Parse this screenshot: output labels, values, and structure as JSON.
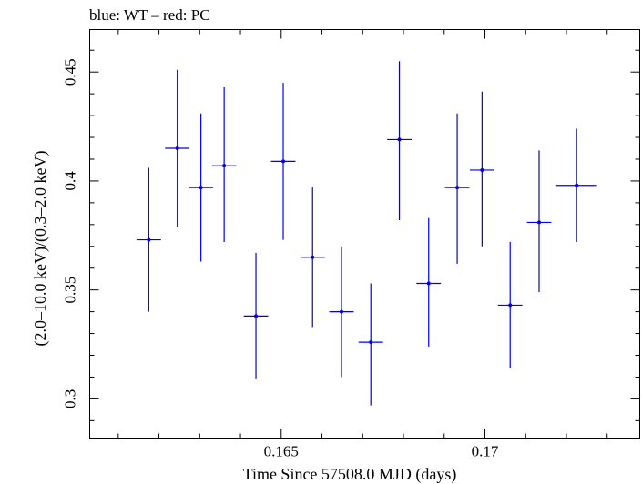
{
  "header": {
    "title": "blue: WT – red: PC"
  },
  "chart_data": {
    "type": "scatter",
    "title": "blue: WT – red: PC",
    "xlabel": "Time Since 57508.0 MJD (days)",
    "ylabel": "(2.0–10.0 keV)/(0.3–2.0 keV)",
    "xlim": [
      0.1603,
      0.1738
    ],
    "ylim": [
      0.282,
      0.4695
    ],
    "xticks": [
      0.165,
      0.17
    ],
    "xtick_labels": [
      "0.165",
      "0.17"
    ],
    "yticks": [
      0.3,
      0.35,
      0.4,
      0.45
    ],
    "ytick_labels": [
      "0.3",
      "0.35",
      "0.4",
      "0.45"
    ],
    "grid": false,
    "series": [
      {
        "name": "WT",
        "color": "#0000ee",
        "points": [
          {
            "x": 0.16175,
            "xerr": 0.0003,
            "y": 0.373,
            "ylo": 0.34,
            "yhi": 0.406
          },
          {
            "x": 0.16245,
            "xerr": 0.0003,
            "y": 0.415,
            "ylo": 0.379,
            "yhi": 0.451
          },
          {
            "x": 0.16303,
            "xerr": 0.0003,
            "y": 0.397,
            "ylo": 0.363,
            "yhi": 0.431
          },
          {
            "x": 0.1636,
            "xerr": 0.0003,
            "y": 0.407,
            "ylo": 0.372,
            "yhi": 0.443
          },
          {
            "x": 0.16438,
            "xerr": 0.0003,
            "y": 0.338,
            "ylo": 0.309,
            "yhi": 0.367
          },
          {
            "x": 0.16505,
            "xerr": 0.0003,
            "y": 0.409,
            "ylo": 0.373,
            "yhi": 0.445
          },
          {
            "x": 0.16577,
            "xerr": 0.0003,
            "y": 0.365,
            "ylo": 0.333,
            "yhi": 0.397
          },
          {
            "x": 0.16648,
            "xerr": 0.0003,
            "y": 0.34,
            "ylo": 0.31,
            "yhi": 0.37
          },
          {
            "x": 0.1672,
            "xerr": 0.0003,
            "y": 0.326,
            "ylo": 0.297,
            "yhi": 0.353
          },
          {
            "x": 0.1679,
            "xerr": 0.0003,
            "y": 0.419,
            "ylo": 0.382,
            "yhi": 0.455
          },
          {
            "x": 0.16862,
            "xerr": 0.0003,
            "y": 0.353,
            "ylo": 0.324,
            "yhi": 0.383
          },
          {
            "x": 0.16932,
            "xerr": 0.0003,
            "y": 0.397,
            "ylo": 0.362,
            "yhi": 0.431
          },
          {
            "x": 0.16993,
            "xerr": 0.0003,
            "y": 0.405,
            "ylo": 0.37,
            "yhi": 0.441
          },
          {
            "x": 0.17062,
            "xerr": 0.0003,
            "y": 0.343,
            "ylo": 0.314,
            "yhi": 0.372
          },
          {
            "x": 0.17133,
            "xerr": 0.0003,
            "y": 0.381,
            "ylo": 0.349,
            "yhi": 0.414
          },
          {
            "x": 0.17225,
            "xerr": 0.0005,
            "y": 0.398,
            "ylo": 0.372,
            "yhi": 0.424
          }
        ]
      }
    ]
  }
}
